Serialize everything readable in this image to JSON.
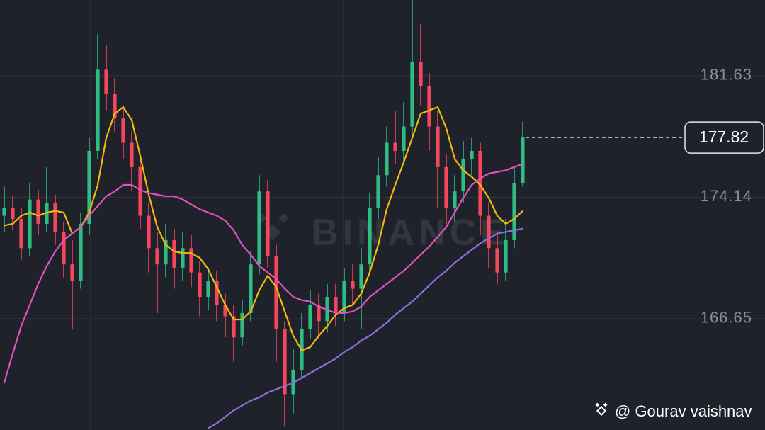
{
  "chart_data": {
    "type": "candlestick",
    "watermark": "BINANCE",
    "footer": "@ Gourav vaishnav",
    "ylim": [
      159.79,
      186.3
    ],
    "yticks": [
      181.63,
      174.14,
      166.65
    ],
    "grid": true,
    "up_color": "#2ebd85",
    "down_color": "#f6465d",
    "last_price": 177.82,
    "open": [
      173.0,
      173.5,
      172.8,
      171.0,
      174.0,
      172.5,
      173.8,
      172.0,
      170.0,
      169.0,
      172.5,
      177.0,
      182.0,
      180.5,
      179.0,
      177.5,
      176.0,
      173.0,
      171.0,
      170.0,
      171.5,
      169.8,
      171.0,
      169.5,
      168.0,
      169.0,
      167.5,
      166.8,
      165.5,
      167.0,
      170.0,
      174.5,
      170.5,
      166.0,
      162.0,
      163.5,
      166.0,
      167.5,
      166.5,
      168.0,
      167.0,
      169.0,
      168.5,
      170.0,
      173.5,
      175.5,
      177.5,
      177.0,
      178.5,
      182.5,
      181.0,
      178.5,
      176.0,
      173.5,
      174.5,
      176.5,
      177.0,
      173.0,
      171.0,
      169.5,
      171.5,
      175.0
    ],
    "high": [
      174.8,
      174.2,
      173.5,
      175.0,
      174.6,
      176.0,
      174.3,
      172.6,
      171.5,
      173.2,
      177.8,
      184.2,
      183.5,
      181.5,
      179.8,
      178.2,
      176.8,
      173.8,
      172.0,
      172.5,
      172.2,
      172.0,
      171.8,
      170.2,
      169.8,
      169.6,
      168.2,
      167.5,
      167.8,
      170.8,
      175.5,
      175.2,
      171.2,
      166.5,
      164.8,
      167.0,
      168.4,
      168.2,
      168.8,
      168.8,
      169.8,
      170.0,
      171.0,
      174.4,
      176.6,
      178.5,
      179.5,
      180.0,
      186.3,
      184.8,
      181.8,
      179.5,
      176.8,
      175.5,
      177.6,
      177.8,
      177.5,
      173.8,
      172.0,
      172.8,
      176.0,
      178.8
    ],
    "low": [
      172.0,
      172.1,
      170.3,
      170.5,
      171.8,
      172.0,
      171.2,
      169.2,
      166.0,
      168.5,
      171.8,
      176.5,
      179.5,
      178.2,
      176.5,
      174.5,
      172.2,
      169.5,
      167.0,
      169.2,
      168.5,
      169.0,
      168.6,
      166.8,
      167.2,
      166.5,
      165.5,
      164.0,
      165.0,
      166.5,
      169.4,
      169.8,
      164.0,
      160.0,
      160.8,
      163.0,
      165.4,
      165.4,
      165.8,
      166.2,
      166.5,
      167.5,
      166.0,
      169.4,
      172.8,
      174.8,
      176.2,
      176.2,
      177.8,
      179.8,
      177.0,
      173.5,
      172.5,
      172.6,
      173.8,
      175.5,
      171.8,
      169.8,
      168.8,
      169.0,
      171.0,
      174.8
    ],
    "close": [
      173.5,
      172.8,
      171.0,
      174.0,
      172.5,
      173.8,
      172.0,
      170.0,
      169.0,
      172.5,
      177.0,
      182.0,
      180.5,
      179.0,
      177.5,
      176.0,
      173.0,
      171.0,
      170.0,
      171.5,
      169.8,
      171.0,
      169.5,
      168.0,
      169.0,
      167.5,
      166.8,
      165.5,
      167.0,
      170.0,
      174.5,
      170.5,
      166.0,
      162.0,
      163.5,
      166.0,
      167.5,
      166.5,
      168.0,
      167.0,
      169.0,
      168.5,
      170.0,
      173.5,
      175.5,
      177.5,
      177.0,
      178.5,
      182.5,
      181.0,
      178.5,
      176.0,
      173.5,
      174.5,
      176.5,
      177.0,
      173.0,
      171.0,
      169.5,
      171.5,
      175.0,
      177.82
    ],
    "series": [
      {
        "color": "#f0b90b",
        "values": [
          172.4,
          172.5,
          173.0,
          173.2,
          173.0,
          173.2,
          173.3,
          173.2,
          171.9,
          172.3,
          173.2,
          174.9,
          177.8,
          179.3,
          179.7,
          178.9,
          176.7,
          174.3,
          172.3,
          171.2,
          170.8,
          170.7,
          170.7,
          170.4,
          169.7,
          168.6,
          167.5,
          166.6,
          166.6,
          167.1,
          168.4,
          169.3,
          168.6,
          167.1,
          165.6,
          164.7,
          164.9,
          165.6,
          166.2,
          166.9,
          167.3,
          167.5,
          168.2,
          169.5,
          171.2,
          173.4,
          174.9,
          176.3,
          177.8,
          179.3,
          179.5,
          179.7,
          178.4,
          176.5,
          175.8,
          175.4,
          174.9,
          174.1,
          173.0,
          172.5,
          172.8,
          173.3
        ]
      },
      {
        "color": "#e052c0",
        "values": [
          162.7,
          164.5,
          166.2,
          167.5,
          168.8,
          169.9,
          170.8,
          171.5,
          171.9,
          172.3,
          173.0,
          173.6,
          174.2,
          174.5,
          174.9,
          174.9,
          174.6,
          174.4,
          174.3,
          174.2,
          174.2,
          174.0,
          173.7,
          173.4,
          173.2,
          173.0,
          172.7,
          172.1,
          171.2,
          170.6,
          169.9,
          169.5,
          169.1,
          168.5,
          168.0,
          167.8,
          167.7,
          167.4,
          167.2,
          167.0,
          167.0,
          167.1,
          167.4,
          168.0,
          168.4,
          168.8,
          169.2,
          169.6,
          170.1,
          170.6,
          171.1,
          171.7,
          172.3,
          173.2,
          174.1,
          174.9,
          175.3,
          175.6,
          175.7,
          175.8,
          176.0,
          176.2
        ]
      },
      {
        "color": "#8c6fdc",
        "values": [
          null,
          null,
          null,
          null,
          null,
          null,
          null,
          null,
          null,
          null,
          null,
          null,
          null,
          null,
          null,
          null,
          null,
          null,
          null,
          null,
          null,
          null,
          null,
          null,
          159.9,
          160.2,
          160.6,
          161.0,
          161.3,
          161.6,
          161.8,
          162.1,
          162.3,
          162.5,
          162.7,
          163.0,
          163.3,
          163.6,
          163.9,
          164.2,
          164.6,
          164.9,
          165.3,
          165.6,
          166.0,
          166.4,
          166.9,
          167.3,
          167.7,
          168.2,
          168.7,
          169.2,
          169.6,
          170.1,
          170.5,
          170.9,
          171.3,
          171.6,
          171.9,
          172.0,
          172.1,
          172.2
        ]
      }
    ]
  }
}
